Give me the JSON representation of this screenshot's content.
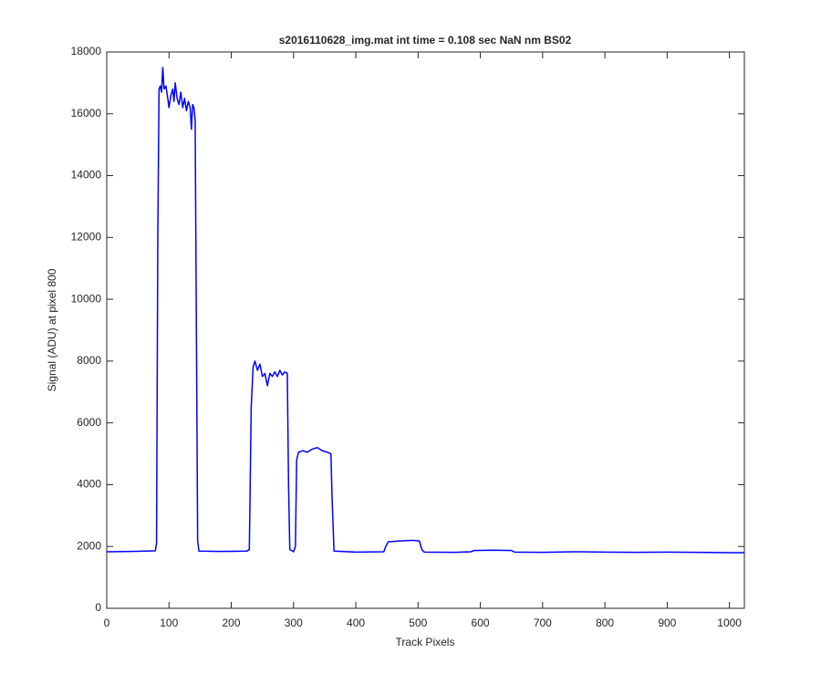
{
  "chart_data": {
    "type": "line",
    "title": "s2016110628_img.mat int time = 0.108 sec  NaN nm BS02",
    "x_label": "Track Pixels",
    "y_label": "Signal (ADU) at pixel 800",
    "xlim": [
      0,
      1024
    ],
    "ylim": [
      0,
      18000
    ],
    "xticks": [
      0,
      100,
      200,
      300,
      400,
      500,
      600,
      700,
      800,
      900,
      1000
    ],
    "yticks": [
      0,
      2000,
      4000,
      6000,
      8000,
      10000,
      12000,
      14000,
      16000,
      18000
    ],
    "grid": false,
    "series": [
      {
        "color": "#0000ff",
        "x": [
          0,
          40,
          78,
          80,
          82,
          84,
          86,
          88,
          90,
          92,
          95,
          98,
          100,
          103,
          106,
          108,
          110,
          113,
          116,
          119,
          122,
          125,
          128,
          131,
          134,
          136,
          138,
          140,
          142,
          144,
          146,
          148,
          180,
          225,
          229,
          232,
          235,
          238,
          242,
          246,
          250,
          254,
          258,
          262,
          266,
          270,
          274,
          278,
          282,
          286,
          290,
          292,
          294,
          300,
          303,
          305,
          308,
          315,
          322,
          330,
          338,
          346,
          354,
          360,
          362,
          365,
          400,
          445,
          448,
          452,
          470,
          490,
          502,
          506,
          510,
          560,
          585,
          590,
          620,
          650,
          655,
          700,
          750,
          800,
          850,
          900,
          950,
          1000,
          1024
        ],
        "values": [
          1830,
          1840,
          1860,
          2100,
          12000,
          16800,
          16900,
          16700,
          17500,
          16800,
          16900,
          16500,
          16200,
          16600,
          16800,
          16400,
          17000,
          16500,
          16300,
          16700,
          16200,
          16500,
          16100,
          16400,
          16200,
          15500,
          16300,
          16200,
          15800,
          9000,
          2200,
          1850,
          1840,
          1850,
          1900,
          6500,
          7800,
          8000,
          7700,
          7900,
          7500,
          7600,
          7200,
          7600,
          7500,
          7650,
          7500,
          7700,
          7550,
          7650,
          7600,
          4000,
          1900,
          1830,
          2000,
          4800,
          5050,
          5100,
          5050,
          5150,
          5200,
          5100,
          5050,
          5000,
          3500,
          1850,
          1820,
          1830,
          2000,
          2150,
          2180,
          2200,
          2180,
          1900,
          1820,
          1810,
          1830,
          1870,
          1880,
          1870,
          1820,
          1810,
          1830,
          1820,
          1810,
          1820,
          1810,
          1800,
          1800
        ]
      }
    ]
  }
}
